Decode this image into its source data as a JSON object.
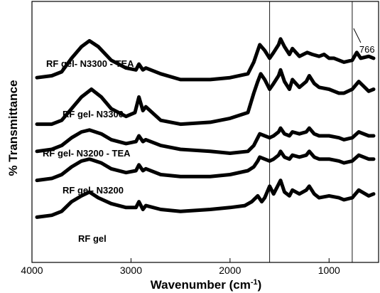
{
  "chart_data": {
    "type": "line",
    "xlabel": "Wavenumber (cm",
    "xlabel_sup": "-1",
    "xlabel_end": ")",
    "ylabel": "% Transmittance",
    "xlim": [
      4000,
      500
    ],
    "x_reversed": true,
    "xticks": [
      4000,
      3000,
      2000,
      1000
    ],
    "grid": false,
    "reference_lines": [
      {
        "x": 1600,
        "label": ""
      },
      {
        "x": 766,
        "label": "766"
      }
    ],
    "series": [
      {
        "name": "RF gel- N3300 - TEA",
        "x": [
          3950,
          3800,
          3700,
          3600,
          3500,
          3420,
          3330,
          3200,
          3050,
          2950,
          2920,
          2880,
          2850,
          2700,
          2500,
          2200,
          2000,
          1820,
          1760,
          1720,
          1700,
          1650,
          1600,
          1560,
          1510,
          1490,
          1450,
          1400,
          1370,
          1300,
          1220,
          1170,
          1100,
          1050,
          1000,
          950,
          900,
          850,
          766,
          720,
          680,
          600,
          550
        ],
        "y": [
          32,
          31,
          29,
          22,
          16,
          13,
          16,
          23,
          27,
          28,
          25,
          28,
          27,
          30,
          33,
          33,
          32,
          30,
          24,
          18,
          15,
          18,
          22,
          19,
          15,
          12,
          16,
          20,
          17,
          21,
          19,
          20,
          21,
          20,
          22,
          22,
          23,
          24,
          23,
          19,
          22,
          21,
          22
        ]
      },
      {
        "name": "RF gel- N3300",
        "x": [
          3950,
          3800,
          3700,
          3600,
          3500,
          3400,
          3300,
          3200,
          3050,
          2960,
          2920,
          2880,
          2850,
          2700,
          2500,
          2200,
          2000,
          1820,
          1760,
          1720,
          1690,
          1650,
          1600,
          1560,
          1510,
          1490,
          1450,
          1400,
          1370,
          1300,
          1230,
          1200,
          1150,
          1100,
          1000,
          900,
          850,
          766,
          700,
          600,
          550
        ],
        "y": [
          56,
          56,
          54,
          48,
          42,
          38,
          42,
          48,
          52,
          50,
          42,
          49,
          47,
          54,
          56,
          55,
          53,
          50,
          40,
          34,
          30,
          33,
          38,
          35,
          31,
          28,
          34,
          38,
          33,
          37,
          34,
          31,
          35,
          37,
          38,
          40,
          40,
          38,
          34,
          39,
          38
        ]
      },
      {
        "name": "RF gel- N3200 - TEA",
        "x": [
          3950,
          3800,
          3700,
          3600,
          3500,
          3420,
          3300,
          3200,
          3050,
          2950,
          2920,
          2880,
          2850,
          2700,
          2500,
          2200,
          2000,
          1820,
          1760,
          1720,
          1700,
          1650,
          1600,
          1560,
          1510,
          1490,
          1450,
          1400,
          1370,
          1300,
          1230,
          1200,
          1150,
          1100,
          1000,
          900,
          850,
          766,
          700,
          600,
          550
        ],
        "y": [
          70,
          69,
          67,
          63,
          60,
          59,
          61,
          64,
          66,
          65,
          62,
          65,
          64,
          67,
          69,
          70,
          71,
          70,
          67,
          63,
          61,
          62,
          63,
          62,
          60,
          58,
          61,
          62,
          60,
          61,
          60,
          58,
          61,
          62,
          62,
          63,
          64,
          63,
          60,
          62,
          62
        ]
      },
      {
        "name": "RF gel- N3200",
        "x": [
          3950,
          3800,
          3700,
          3600,
          3500,
          3420,
          3300,
          3200,
          3050,
          2950,
          2920,
          2880,
          2850,
          2700,
          2500,
          2200,
          2000,
          1820,
          1760,
          1720,
          1700,
          1650,
          1600,
          1560,
          1510,
          1490,
          1450,
          1400,
          1370,
          1300,
          1230,
          1200,
          1150,
          1100,
          1000,
          900,
          850,
          766,
          700,
          600,
          550
        ],
        "y": [
          85,
          84,
          82,
          78,
          75,
          74,
          76,
          79,
          81,
          80,
          77,
          80,
          79,
          82,
          83,
          83,
          82,
          80,
          78,
          75,
          73,
          74,
          75,
          74,
          72,
          70,
          73,
          74,
          72,
          73,
          72,
          70,
          73,
          74,
          74,
          75,
          76,
          75,
          72,
          74,
          74
        ]
      },
      {
        "name": "RF gel",
        "x": [
          3950,
          3800,
          3700,
          3600,
          3500,
          3420,
          3330,
          3200,
          3050,
          2950,
          2920,
          2880,
          2850,
          2700,
          2500,
          2200,
          2000,
          1850,
          1780,
          1720,
          1680,
          1650,
          1600,
          1560,
          1510,
          1490,
          1450,
          1400,
          1370,
          1300,
          1230,
          1200,
          1150,
          1100,
          1000,
          900,
          850,
          766,
          700,
          600,
          550
        ],
        "y": [
          104,
          103,
          101,
          96,
          93,
          91,
          94,
          97,
          99,
          99,
          96,
          100,
          98,
          100,
          101,
          100,
          99,
          98,
          96,
          93,
          96,
          94,
          88,
          92,
          87,
          85,
          91,
          93,
          90,
          92,
          90,
          88,
          92,
          94,
          93,
          94,
          95,
          94,
          90,
          93,
          92
        ]
      }
    ],
    "series_label_positions": [
      "left-middle",
      "left-middle",
      "left-middle",
      "left-middle",
      "left-bottom"
    ]
  }
}
